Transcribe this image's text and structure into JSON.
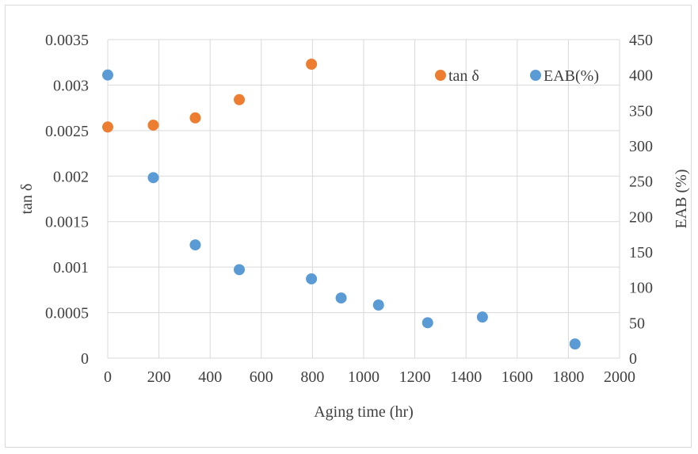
{
  "chart_data": {
    "type": "scatter",
    "title": "",
    "xlabel": "Aging time (hr)",
    "ylabel_left": "tan δ",
    "ylabel_right": "EAB (%)",
    "xlim": [
      0,
      2000
    ],
    "ylim_left": [
      0,
      0.0035
    ],
    "ylim_right": [
      0,
      450
    ],
    "x_ticks": [
      0,
      200,
      400,
      600,
      800,
      1000,
      1200,
      1400,
      1600,
      1800,
      2000
    ],
    "y_left_ticks": [
      "0",
      "0.0005",
      "0.001",
      "0.0015",
      "0.002",
      "0.0025",
      "0.003",
      "0.0035"
    ],
    "y_left_tick_values": [
      0,
      0.0005,
      0.001,
      0.0015,
      0.002,
      0.0025,
      0.003,
      0.0035
    ],
    "y_right_ticks": [
      0,
      50,
      100,
      150,
      200,
      250,
      300,
      350,
      400,
      450
    ],
    "grid": true,
    "legend_position": "top-right",
    "series": [
      {
        "name": "tan δ",
        "axis": "left",
        "color": "#ED7D31",
        "x": [
          0,
          178,
          342,
          514,
          796
        ],
        "y": [
          0.00254,
          0.00256,
          0.00264,
          0.00284,
          0.00323
        ]
      },
      {
        "name": "EAB(%)",
        "axis": "right",
        "color": "#5B9BD5",
        "x": [
          0,
          178,
          342,
          514,
          796,
          912,
          1058,
          1250,
          1464,
          1826
        ],
        "y": [
          400,
          255,
          160,
          125,
          112,
          85,
          75,
          50,
          58,
          20
        ]
      }
    ]
  }
}
